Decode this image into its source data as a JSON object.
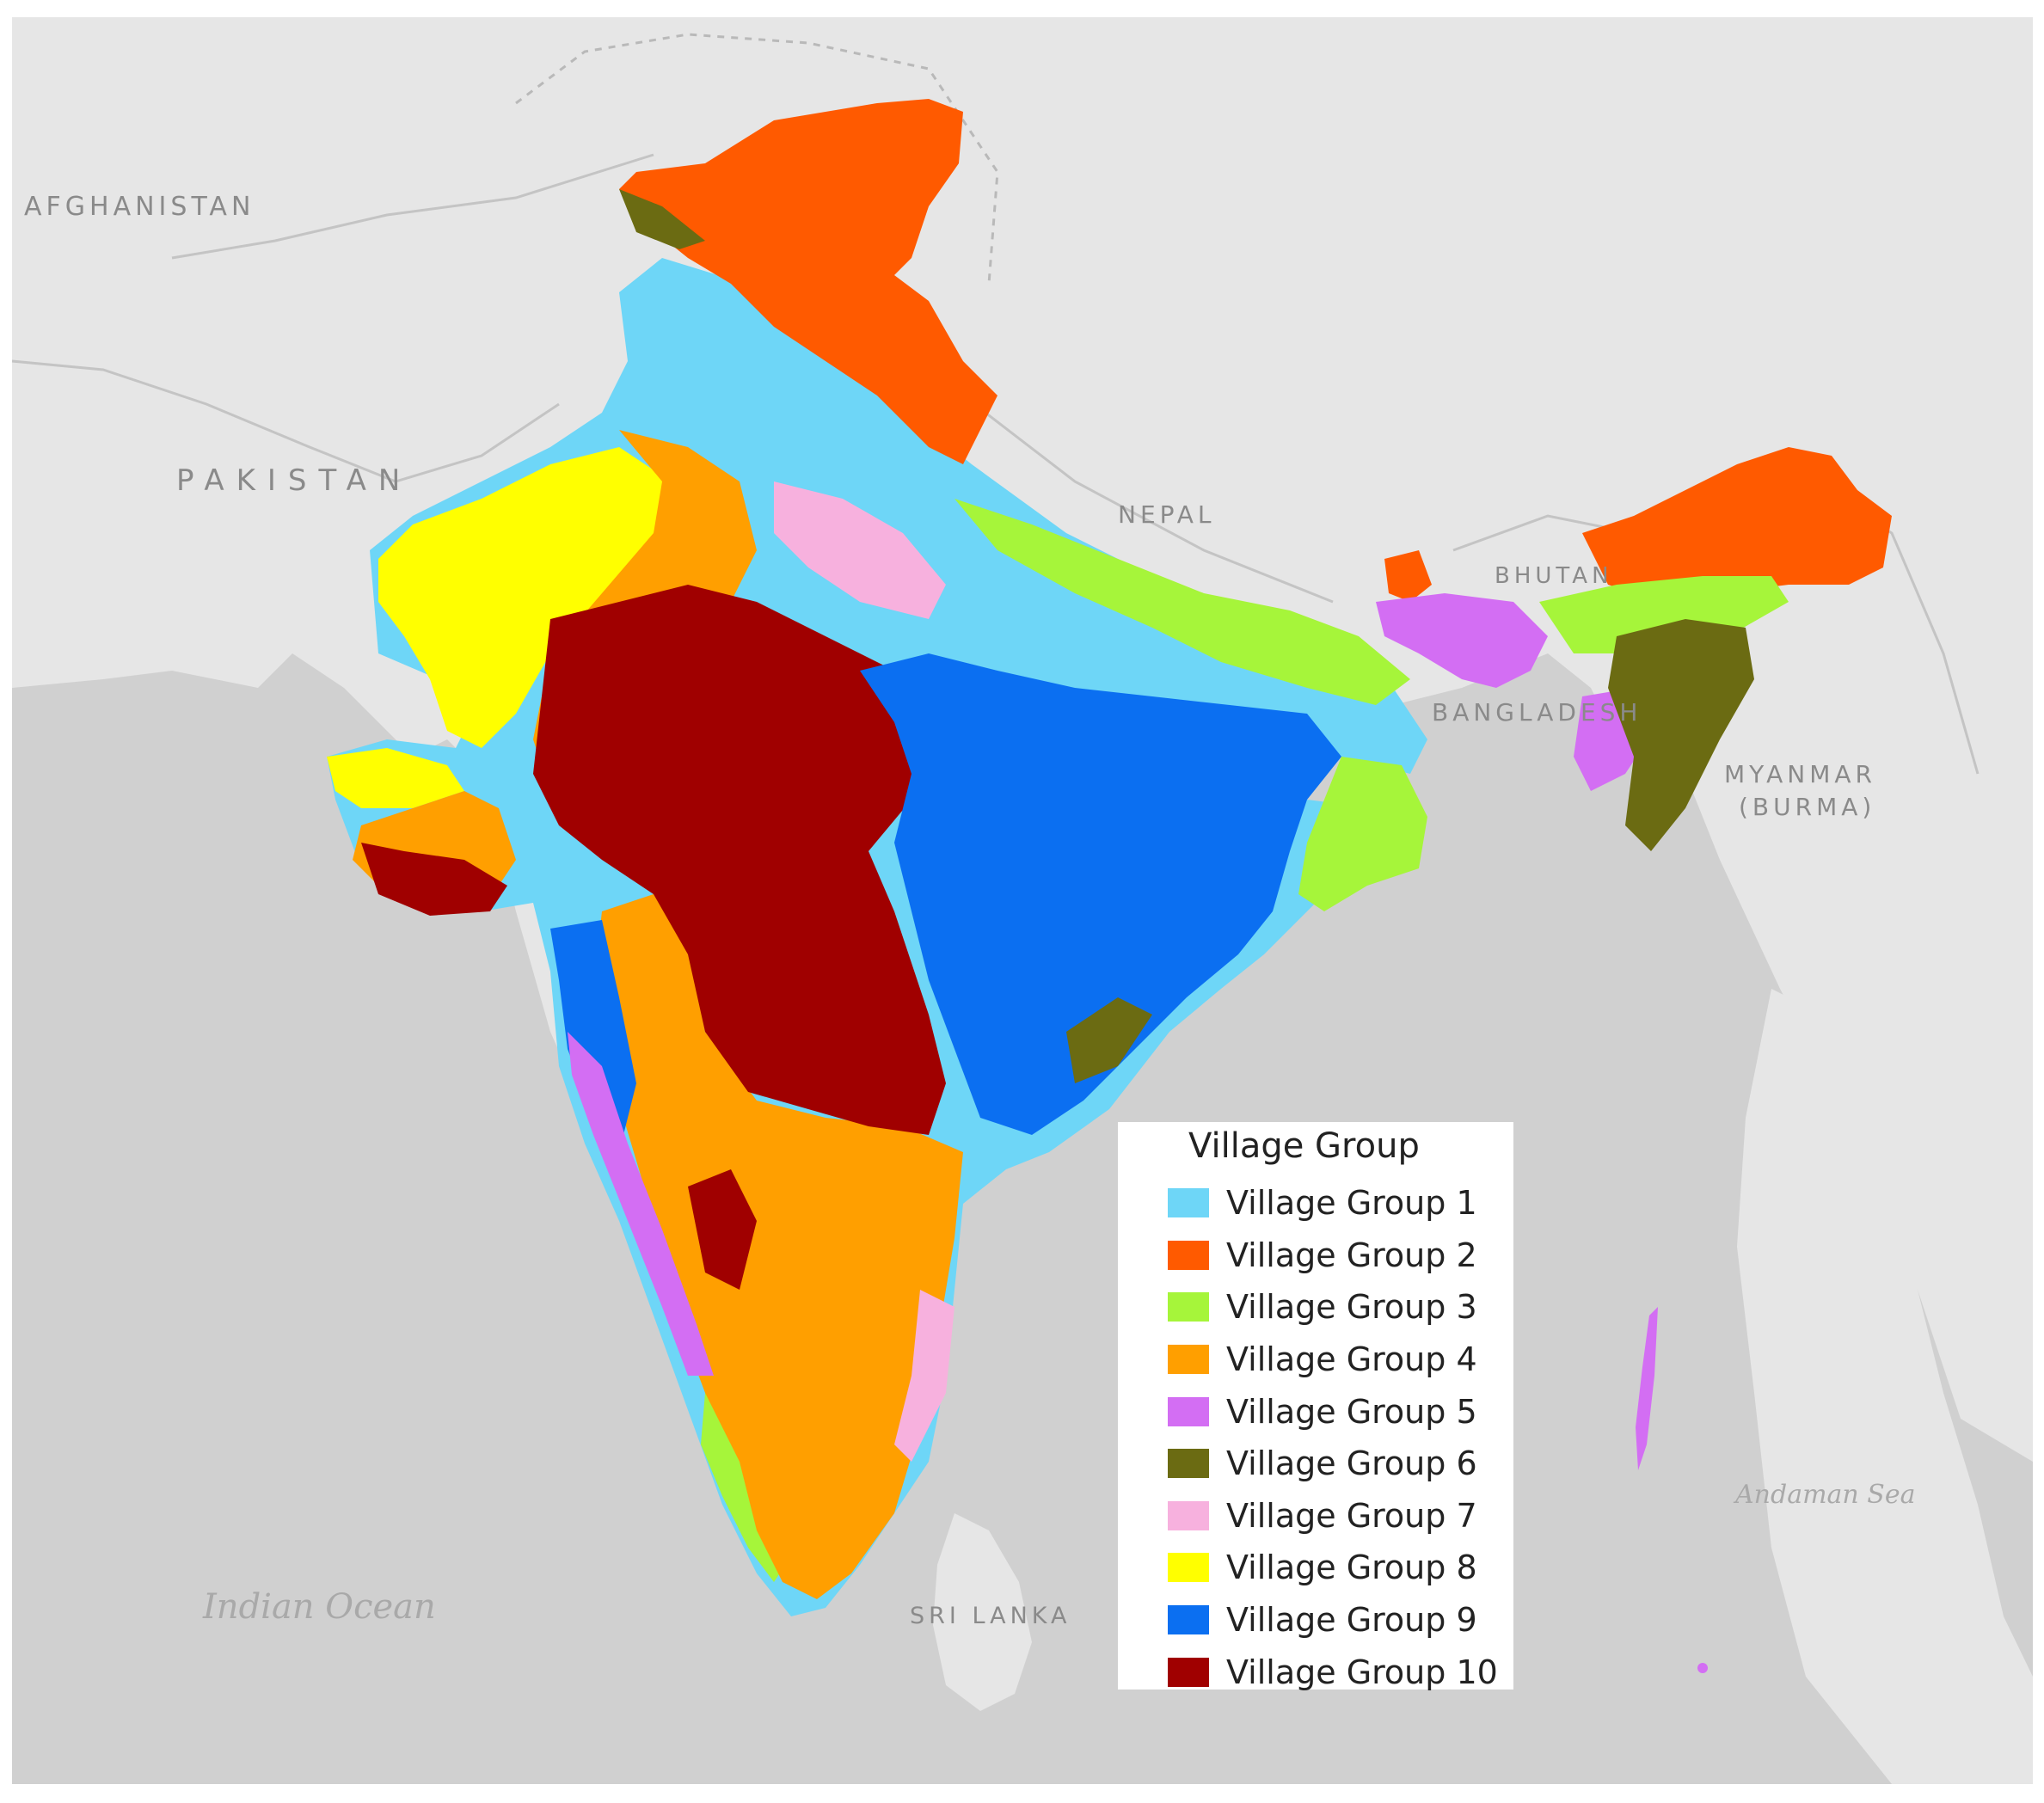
{
  "map": {
    "country_labels": {
      "afghanistan": "AFGHANISTAN",
      "pakistan": "PAKISTAN",
      "nepal": "NEPAL",
      "bhutan": "BHUTAN",
      "bangladesh": "BANGLADESH",
      "myanmar_line1": "MYANMAR",
      "myanmar_line2": "(BURMA)",
      "sri_lanka": "SRI LANKA"
    },
    "sea_labels": {
      "indian_ocean": "Indian Ocean",
      "andaman_sea": "Andaman Sea"
    }
  },
  "legend": {
    "title": "Village Group",
    "items": [
      {
        "label": "Village Group 1",
        "color": "#6ed6f7"
      },
      {
        "label": "Village Group 2",
        "color": "#ff5a00"
      },
      {
        "label": "Village Group 3",
        "color": "#a6f53a"
      },
      {
        "label": "Village Group 4",
        "color": "#ff9f00"
      },
      {
        "label": "Village Group 5",
        "color": "#d36ef3"
      },
      {
        "label": "Village Group 6",
        "color": "#6b6b12"
      },
      {
        "label": "Village Group 7",
        "color": "#f7b1de"
      },
      {
        "label": "Village Group 8",
        "color": "#ffff00"
      },
      {
        "label": "Village Group 9",
        "color": "#0b6ff1"
      },
      {
        "label": "Village Group 10",
        "color": "#a00000"
      }
    ]
  }
}
